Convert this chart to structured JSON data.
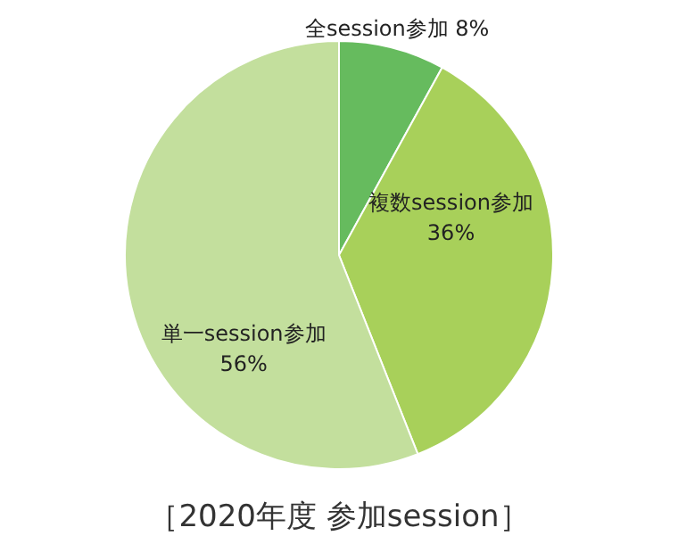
{
  "chart_data": {
    "type": "pie",
    "title": "［2020年度 参加session］",
    "categories": [
      "全session参加",
      "複数session参加",
      "単一session参加"
    ],
    "values": [
      8,
      36,
      56
    ],
    "value_labels": [
      "8%",
      "36%",
      "56%"
    ],
    "colors": [
      "#66bb5e",
      "#a8d05a",
      "#c3df9d"
    ]
  }
}
